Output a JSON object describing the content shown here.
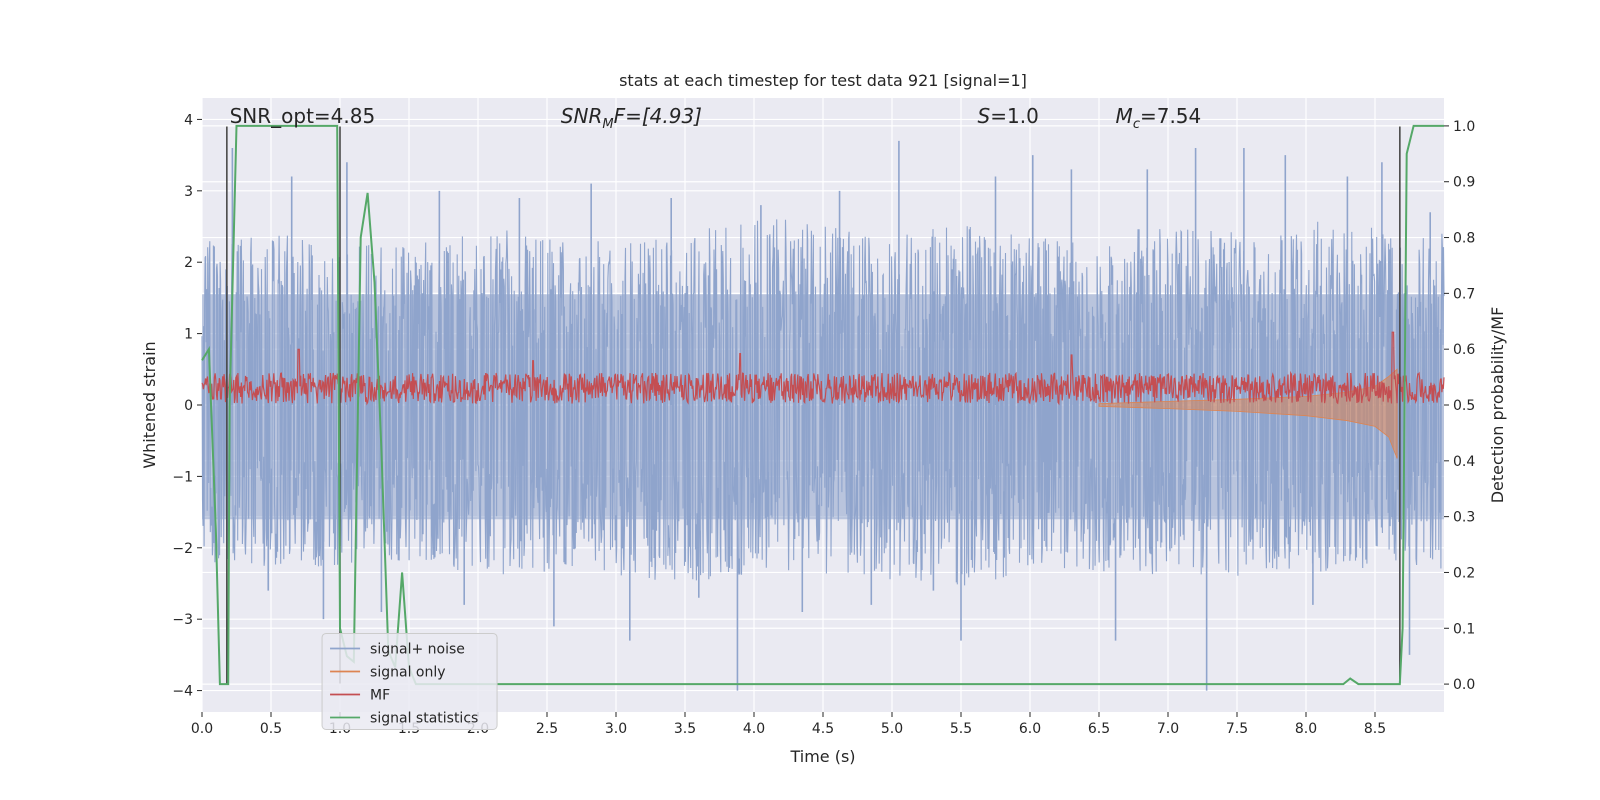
{
  "chart_data": {
    "type": "line",
    "title": "stats at each timestep for test data 921 [signal=1]",
    "xlabel": "Time (s)",
    "ylabel": "Whitened strain",
    "ylabel_right": "Detection probability/MF",
    "xlim": [
      0.0,
      9.0
    ],
    "ylim": [
      -4.3,
      4.3
    ],
    "ylim_right": [
      -0.05,
      1.05
    ],
    "x_ticks": [
      "0.0",
      "0.5",
      "1.0",
      "1.5",
      "2.0",
      "2.5",
      "3.0",
      "3.5",
      "4.0",
      "4.5",
      "5.0",
      "5.5",
      "6.0",
      "6.5",
      "7.0",
      "7.5",
      "8.0",
      "8.5"
    ],
    "y_ticks": [
      "4",
      "3",
      "2",
      "1",
      "0",
      "−1",
      "−2",
      "−3",
      "−4"
    ],
    "y_ticks_right": [
      "1.0",
      "0.9",
      "0.8",
      "0.7",
      "0.6",
      "0.5",
      "0.4",
      "0.3",
      "0.2",
      "0.1",
      "0.0"
    ],
    "grid": true,
    "legend_position": "lower-left",
    "annotations": {
      "snr_opt": "SNR_opt=4.85",
      "snr_mf_main": "SNR",
      "snr_mf_sub": "M",
      "snr_mf_rest": "F=[4.93]",
      "s_main": "S",
      "s_rest": "=1.0",
      "mc_main": "M",
      "mc_sub": "c",
      "mc_rest": "=7.54"
    },
    "vlines_x": [
      0.18,
      1.0,
      8.68
    ],
    "series": [
      {
        "name": "signal+ noise",
        "color": "#8fa4cc",
        "axis": "left",
        "envelope_hi": [
          2.1,
          2.2,
          2.0,
          2.3,
          2.1,
          2.2,
          2.4,
          2.2,
          2.3,
          2.1,
          2.3,
          2.2,
          2.4,
          2.2
        ],
        "envelope_lo": [
          -2.0,
          -2.1,
          -2.0,
          -2.2,
          -2.1,
          -2.3,
          -2.1,
          -2.2,
          -2.3,
          -2.1,
          -2.2,
          -2.2,
          -2.1,
          -2.1
        ],
        "spikes": [
          [
            0.22,
            3.6
          ],
          [
            0.48,
            -2.6
          ],
          [
            0.65,
            3.2
          ],
          [
            0.88,
            -3.0
          ],
          [
            1.05,
            3.4
          ],
          [
            1.3,
            -2.9
          ],
          [
            1.72,
            3.0
          ],
          [
            1.9,
            -2.8
          ],
          [
            2.3,
            2.9
          ],
          [
            2.55,
            -3.1
          ],
          [
            2.82,
            3.1
          ],
          [
            3.1,
            -3.3
          ],
          [
            3.4,
            2.9
          ],
          [
            3.6,
            -2.7
          ],
          [
            3.88,
            -4.0
          ],
          [
            4.05,
            2.8
          ],
          [
            4.35,
            -2.9
          ],
          [
            4.62,
            3.0
          ],
          [
            4.85,
            -2.8
          ],
          [
            5.05,
            3.7
          ],
          [
            5.3,
            -2.6
          ],
          [
            5.5,
            -3.3
          ],
          [
            5.75,
            3.2
          ],
          [
            6.02,
            3.5
          ],
          [
            6.3,
            3.3
          ],
          [
            6.62,
            -3.3
          ],
          [
            6.85,
            3.3
          ],
          [
            7.2,
            3.6
          ],
          [
            7.28,
            -4.0
          ],
          [
            7.55,
            3.6
          ],
          [
            7.85,
            3.5
          ],
          [
            8.05,
            -2.8
          ],
          [
            8.3,
            3.2
          ],
          [
            8.55,
            3.4
          ],
          [
            8.75,
            -3.5
          ],
          [
            8.9,
            2.7
          ]
        ]
      },
      {
        "name": "signal only",
        "color": "#dd8452",
        "axis": "left",
        "x": [
          6.5,
          7.0,
          7.5,
          8.0,
          8.3,
          8.5,
          8.6,
          8.66
        ],
        "lo": [
          -0.02,
          -0.05,
          -0.09,
          -0.15,
          -0.22,
          -0.3,
          -0.45,
          -0.75
        ],
        "hi": [
          0.02,
          0.05,
          0.08,
          0.12,
          0.18,
          0.26,
          0.4,
          0.5
        ]
      },
      {
        "name": "MF",
        "color": "#c44e52",
        "axis": "left",
        "band_lo": 0.02,
        "band_hi": 0.45,
        "peaks": [
          [
            0.7,
            0.78
          ],
          [
            2.4,
            0.62
          ],
          [
            3.9,
            0.72
          ],
          [
            6.3,
            0.7
          ],
          [
            8.63,
            1.02
          ]
        ]
      },
      {
        "name": "signal statistics",
        "color": "#55a868",
        "axis": "right",
        "x": [
          0.0,
          0.05,
          0.1,
          0.13,
          0.19,
          0.2,
          0.25,
          0.3,
          0.98,
          1.0,
          1.05,
          1.1,
          1.15,
          1.2,
          1.25,
          1.3,
          1.35,
          1.4,
          1.45,
          1.5,
          1.55,
          8.0,
          8.2,
          8.27,
          8.32,
          8.38,
          8.5,
          8.68,
          8.7,
          8.73,
          8.78,
          8.85,
          9.0
        ],
        "y": [
          0.58,
          0.6,
          0.28,
          0.0,
          0.0,
          0.5,
          1.0,
          1.0,
          1.0,
          0.1,
          0.05,
          0.04,
          0.8,
          0.88,
          0.72,
          0.42,
          0.06,
          0.03,
          0.2,
          0.03,
          0.0,
          0.0,
          0.0,
          0.0,
          0.01,
          0.0,
          0.0,
          0.0,
          0.1,
          0.95,
          1.0,
          1.0,
          1.0
        ]
      }
    ]
  }
}
